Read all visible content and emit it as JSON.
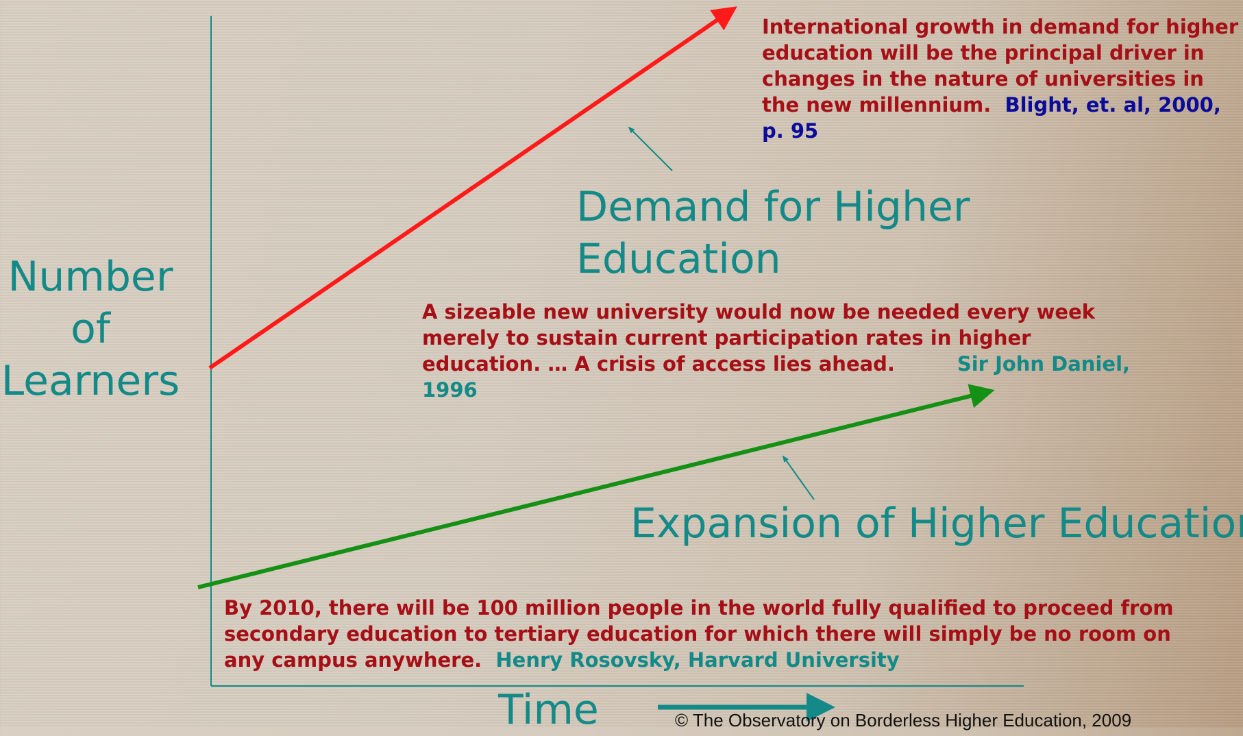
{
  "title": {
    "line1": "Demand for Higher",
    "line2": "Education"
  },
  "subtitle": "Expansion of Higher Education",
  "y_label": {
    "line1": "Number",
    "line2": "of",
    "line3": "Learners"
  },
  "x_label": "Time",
  "quotes": [
    {
      "text": "International growth in demand for higher education will be the principal driver in changes in the nature of universities in the new millennium.",
      "source": "Blight, et. al, 2000, p. 95"
    },
    {
      "text": "A sizeable new university would now be needed every week merely to sustain current participation rates in higher education. … A crisis of access lies ahead.",
      "source": "Sir John Daniel, 1996"
    },
    {
      "text": "By 2010, there will be 100 million people in the world fully qualified to proceed from secondary education to tertiary education for which there will simply be no room on any campus anywhere.",
      "source": "Henry Rosovsky, Harvard University"
    }
  ],
  "copyright": "© The Observatory on Borderless Higher Education, 2009"
}
